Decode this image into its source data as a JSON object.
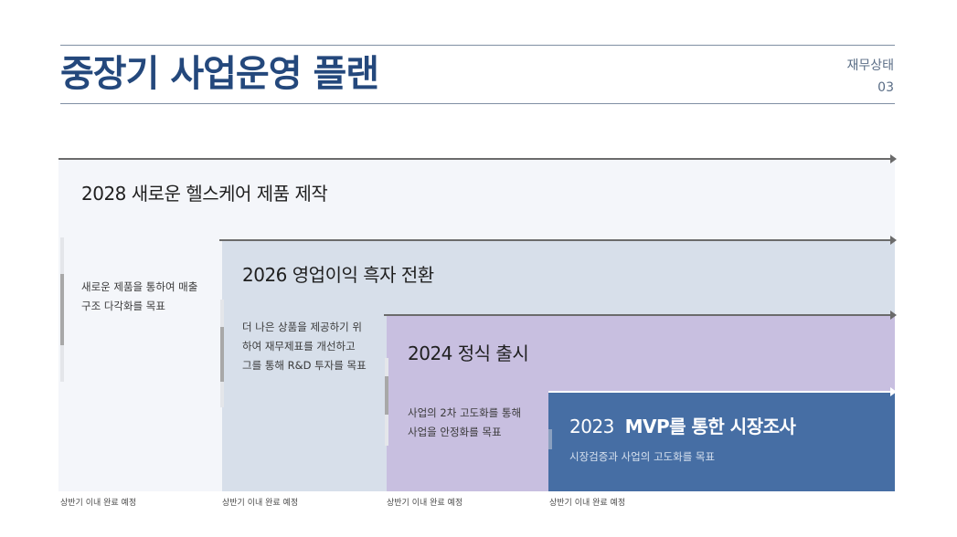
{
  "header": {
    "title": "중장기 사업운영 플랜",
    "section_label": "재무상태",
    "section_number": "03"
  },
  "timeline": {
    "stages": [
      {
        "year": "2028",
        "title": "새로운 헬스케어 제품 제작",
        "description": [
          "새로운 제품을 통하여 매출",
          "구조 다각화를 목표"
        ],
        "footnote": "상반기 이내 완료 예정",
        "color": "#f4f6fa"
      },
      {
        "year": "2026",
        "title": "영업이익 흑자 전환",
        "description": [
          "더 나은 상품을 제공하기 위",
          "하여 재무제표를 개선하고",
          "그를 통해 R&D 투자를 목표"
        ],
        "footnote": "상반기 이내 완료 예정",
        "color": "#d7dfea"
      },
      {
        "year": "2024",
        "title": "정식 출시",
        "description": [
          "사업의 2차 고도화를 통해",
          "사업을 안정화를 목표"
        ],
        "footnote": "상반기 이내 완료 예정",
        "color": "#c8bfe0"
      },
      {
        "year": "2023",
        "title": "MVP를 통한 시장조사",
        "description": "시장검증과 사업의 고도화를 목표",
        "footnote": "상반기 이내 완료 예정",
        "color": "#466ea4"
      }
    ]
  }
}
